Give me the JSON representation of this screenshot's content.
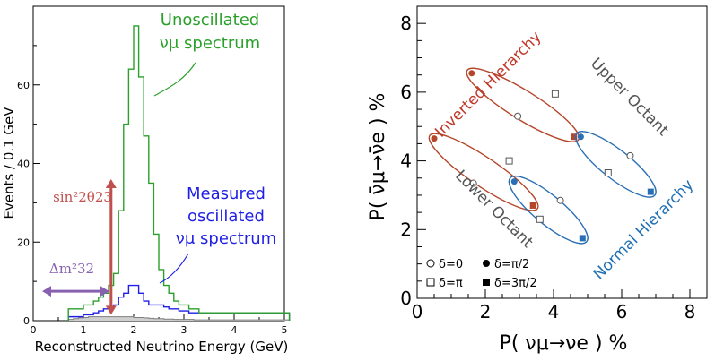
{
  "colors": {
    "unosc": "#2aa02a",
    "meas": "#1f1fe6",
    "bg": "#7f7f7f",
    "sinarrow": "#c0504d",
    "dmarrow": "#8860b0",
    "inverted": "#c0392b",
    "normal": "#1f6fb5",
    "gray_text": "#555555",
    "ellipse_ih": "#b5462a",
    "ellipse_nh": "#2a6fb5"
  },
  "chart_data": [
    {
      "type": "line",
      "subtype": "step-histogram",
      "xlabel": "Reconstructed Neutrino Energy (GeV)",
      "ylabel": "Events / 0.1 GeV",
      "xlim": [
        0,
        5
      ],
      "ylim": [
        0,
        80
      ],
      "xticks": [
        "0",
        "1",
        "2",
        "3",
        "4",
        "5"
      ],
      "yticks": [
        "0",
        "20",
        "40",
        "60"
      ],
      "bin_width": 0.1,
      "series": [
        {
          "key": "unosc",
          "x_start": 0.7,
          "values": [
            3,
            3,
            3,
            4,
            4,
            5,
            6,
            7,
            9,
            12,
            28,
            50,
            64,
            75,
            62,
            47,
            35,
            22,
            13,
            9,
            7,
            5,
            4,
            4,
            3,
            3,
            2,
            2,
            2,
            2,
            2,
            2,
            2,
            2,
            2,
            2,
            2,
            2,
            2,
            2,
            2,
            2,
            2,
            2
          ]
        },
        {
          "key": "meas",
          "x_start": 0.7,
          "values": [
            1,
            1,
            1,
            1.5,
            1.5,
            2,
            2.5,
            3,
            3,
            4,
            6,
            7,
            9,
            9,
            7,
            5,
            4,
            4,
            4,
            3.5,
            3,
            3,
            2.5,
            2.5,
            2,
            2,
            2,
            2,
            2,
            2,
            2,
            2,
            2,
            2,
            2,
            2,
            2,
            2,
            2,
            2,
            2,
            2,
            2,
            2
          ]
        },
        {
          "key": "bg",
          "x_start": 0.7,
          "values": [
            0.3,
            0.5,
            0.7,
            0.8,
            1,
            1,
            1,
            1,
            1,
            1,
            1,
            1,
            1,
            0.8,
            0.8,
            0.7,
            0.6,
            0.5,
            0.5,
            0.4,
            0.4,
            0.3,
            0.3,
            0.3,
            0.3,
            0.2,
            0.2,
            0.2,
            0.2,
            0.2,
            0.2,
            0.2,
            0.2,
            0.2,
            0.2,
            0.2,
            0.2,
            0.2,
            0.2,
            0.2,
            0.2,
            0.2,
            0.2,
            0.2
          ]
        }
      ],
      "annotations": {
        "unosc_label": [
          "Unoscillated",
          "νμ spectrum"
        ],
        "meas_label": [
          "Measured",
          "oscillated",
          "νμ spectrum"
        ],
        "sin_label": "sin²2θ23",
        "dm_label": "Δm²32",
        "sin_arrow": {
          "x": 1.55,
          "y_from": 1.5,
          "y_to": 36
        },
        "dm_arrow": {
          "y": 7.5,
          "x_from": 0,
          "x_to": 1.55
        }
      }
    },
    {
      "type": "scatter",
      "subtype": "bi-probability",
      "xlabel": "P( νμ→νe ) %",
      "ylabel": "P( ν̄μ→ν̄e ) %",
      "xlim": [
        0,
        8.5
      ],
      "ylim": [
        0,
        8.5
      ],
      "xticks": [
        "0",
        "2",
        "4",
        "6",
        "8"
      ],
      "yticks": [
        "0",
        "2",
        "4",
        "6",
        "8"
      ],
      "ellipses": [
        {
          "group": "inverted",
          "points": {
            "delta_0": [
              2.95,
              5.3
            ],
            "delta_pi_half": [
              1.6,
              6.55
            ],
            "delta_pi": [
              4.05,
              5.95
            ],
            "delta_3pi_half": [
              4.6,
              4.7
            ]
          }
        },
        {
          "group": "inverted",
          "points": {
            "delta_0": [
              1.65,
              3.35
            ],
            "delta_pi_half": [
              0.5,
              4.65
            ],
            "delta_pi": [
              2.7,
              4.0
            ],
            "delta_3pi_half": [
              3.4,
              2.7
            ]
          }
        },
        {
          "group": "normal",
          "points": {
            "delta_0": [
              6.25,
              4.15
            ],
            "delta_pi_half": [
              4.8,
              4.7
            ],
            "delta_pi": [
              5.6,
              3.65
            ],
            "delta_3pi_half": [
              6.85,
              3.1
            ]
          }
        },
        {
          "group": "normal",
          "points": {
            "delta_0": [
              4.2,
              2.85
            ],
            "delta_pi_half": [
              2.85,
              3.4
            ],
            "delta_pi": [
              3.6,
              2.3
            ],
            "delta_3pi_half": [
              4.85,
              1.75
            ]
          }
        }
      ],
      "labels": {
        "inverted": "Inverted Hierarchy",
        "normal": "Normal Hierarchy",
        "upper": "Upper Octant",
        "lower": "Lower Octant"
      },
      "legend": {
        "d0": "δ=0",
        "dpihalf": "δ=π/2",
        "dpi": "δ=π",
        "d3pihalf": "δ=3π/2"
      }
    }
  ]
}
